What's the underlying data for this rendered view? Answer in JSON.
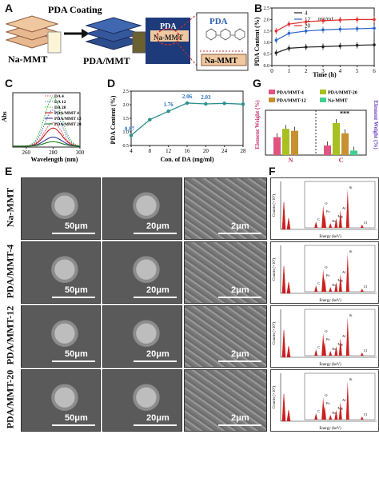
{
  "panels": {
    "A": {
      "letter": "A",
      "title": "PDA Coating",
      "left_label": "Na-MMT",
      "right_label": "PDA/MMT",
      "zoom_pda": "PDA",
      "zoom_mmt": "Na-MMT",
      "inset_pda": "PDA",
      "inset_mmt": "Na-MMT"
    },
    "B": {
      "letter": "B",
      "legend_unit": "mg/ml"
    },
    "C": {
      "letter": "C"
    },
    "D": {
      "letter": "D"
    },
    "E": {
      "letter": "E",
      "rows": [
        {
          "label": "Na-MMT",
          "scales": [
            "50μm",
            "20μm",
            "2μm"
          ]
        },
        {
          "label": "PDA/MMT-4",
          "scales": [
            "50μm",
            "20μm",
            "2μm"
          ]
        },
        {
          "label": "PDA/MMT-12",
          "scales": [
            "50μm",
            "20μm",
            "2μm"
          ]
        },
        {
          "label": "PDA/MMT-20",
          "scales": [
            "50μm",
            "20μm",
            "2μm"
          ]
        }
      ]
    },
    "F": {
      "letter": "F",
      "x_label": "Energy (keV)",
      "y_label": "Counts (×10³)",
      "peaks": [
        "C",
        "O",
        "Fe",
        "Na",
        "Mg",
        "Al",
        "Si",
        "Cl"
      ]
    },
    "G": {
      "letter": "G",
      "significance": "***"
    }
  },
  "chart_data": [
    {
      "panel": "B",
      "type": "line",
      "xlabel": "Time (h)",
      "ylabel": "PDA Content (%)",
      "xlim": [
        0,
        6
      ],
      "ylim": [
        0,
        2.5
      ],
      "xticks": [
        0,
        1,
        2,
        3,
        4,
        5,
        6
      ],
      "yticks": [
        0,
        0.5,
        1.0,
        1.5,
        2.0,
        2.5
      ],
      "x": [
        0.25,
        1,
        2,
        3,
        4,
        5,
        6
      ],
      "series": [
        {
          "name": "4",
          "color": "#222222",
          "values": [
            0.55,
            0.75,
            0.8,
            0.82,
            0.85,
            0.88,
            0.9
          ]
        },
        {
          "name": "12",
          "color": "#2a66c8",
          "values": [
            1.1,
            1.4,
            1.5,
            1.55,
            1.58,
            1.6,
            1.62
          ]
        },
        {
          "name": "20",
          "color": "#e03030",
          "values": [
            1.5,
            1.8,
            1.9,
            1.95,
            1.98,
            2.0,
            2.0
          ]
        }
      ]
    },
    {
      "panel": "C",
      "type": "line",
      "xlabel": "Wavelength (nm)",
      "ylabel": "Abs",
      "xlim": [
        250,
        300
      ],
      "xticks": [
        260,
        280,
        300
      ],
      "series": [
        {
          "name": "DA 4",
          "color": "#e05050",
          "style": "dotted",
          "peak": 1.3
        },
        {
          "name": "DA 12",
          "color": "#5070e0",
          "style": "dotted",
          "peak": 2.0
        },
        {
          "name": "DA 20",
          "color": "#40c040",
          "style": "dotted",
          "peak": 2.7
        },
        {
          "name": "PDA/MMT 4",
          "color": "#c02020",
          "style": "solid",
          "peak": 1.0
        },
        {
          "name": "PDA/MMT 12",
          "color": "#303090",
          "style": "solid",
          "peak": 0.5
        },
        {
          "name": "PDA/MMT 20",
          "color": "#208020",
          "style": "solid",
          "peak": 0.25
        }
      ]
    },
    {
      "panel": "D",
      "type": "line",
      "xlabel": "Con. of DA (mg/ml)",
      "ylabel": "PDA Content (%)",
      "color": "#2a8f8f",
      "xlim": [
        4,
        28
      ],
      "ylim": [
        0.5,
        2.5
      ],
      "xticks": [
        4,
        8,
        12,
        16,
        20,
        24,
        28
      ],
      "yticks": [
        0.5,
        1.0,
        1.5,
        2.0,
        2.5
      ],
      "x": [
        4,
        8,
        12,
        16,
        20,
        24,
        28
      ],
      "values": [
        0.87,
        1.45,
        1.76,
        2.06,
        2.03,
        2.05,
        2.02
      ],
      "labels": [
        "0.87",
        "",
        "1.76",
        "2.06",
        "2.03",
        "",
        ""
      ]
    },
    {
      "panel": "G",
      "type": "bar",
      "ylabel": "Element Weight (%)",
      "ylabel_right": "Element Weight (%)",
      "categories": [
        "N",
        "C"
      ],
      "series": [
        {
          "name": "PDA/MMT-4",
          "color": "#e05580",
          "values": [
            2.8,
            1.5
          ]
        },
        {
          "name": "PDA/MMT-20",
          "color": "#a8c020",
          "values": [
            4.1,
            5.0
          ]
        },
        {
          "name": "PDA/MMT-12",
          "color": "#c89030",
          "values": [
            3.8,
            3.4
          ]
        },
        {
          "name": "Na-MMT",
          "color": "#40d090",
          "values": [
            0,
            0.7
          ]
        }
      ]
    }
  ]
}
